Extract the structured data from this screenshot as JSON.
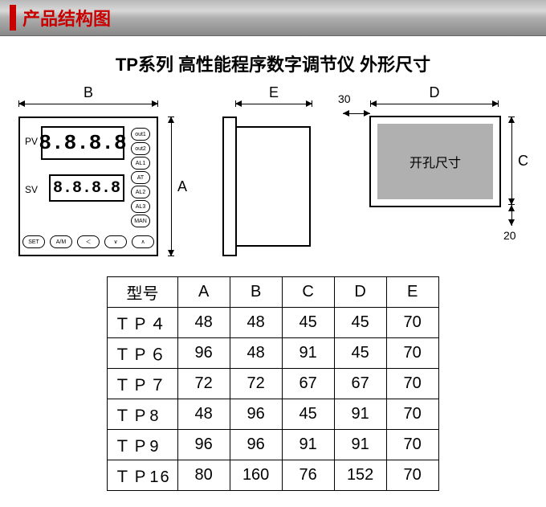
{
  "header": {
    "title": "产品结构图"
  },
  "subtitle": "TP系列 高性能程序数字调节仪 外形尺寸",
  "panel": {
    "pv_label": "PV",
    "sv_label": "SV",
    "seg_placeholder": "8.8.8.8",
    "side_buttons": [
      "out1",
      "out2",
      "AL1",
      "AT",
      "AL2",
      "AL3",
      "MAN"
    ],
    "bottom_buttons": [
      "SET",
      "A/M",
      "＜",
      "∨",
      "∧"
    ]
  },
  "dims": {
    "B": "B",
    "A": "A",
    "E": "E",
    "D": "D",
    "C": "C",
    "thirty": "30",
    "twenty": "20",
    "cutout_text": "开孔尺寸"
  },
  "table": {
    "head_model": "型号",
    "columns": [
      "A",
      "B",
      "C",
      "D",
      "E"
    ],
    "rows": [
      {
        "model": "ＴＰ４",
        "vals": [
          "48",
          "48",
          "45",
          "45",
          "70"
        ]
      },
      {
        "model": "ＴＰ６",
        "vals": [
          "96",
          "48",
          "91",
          "45",
          "70"
        ]
      },
      {
        "model": "ＴＰ７",
        "vals": [
          "72",
          "72",
          "67",
          "67",
          "70"
        ]
      },
      {
        "model": "ＴＰ8",
        "vals": [
          "48",
          "96",
          "45",
          "91",
          "70"
        ]
      },
      {
        "model": "ＴＰ9",
        "vals": [
          "96",
          "96",
          "91",
          "91",
          "70"
        ]
      },
      {
        "model": "ＴＰ16",
        "vals": [
          "80",
          "160",
          "76",
          "152",
          "70"
        ]
      }
    ]
  },
  "colors": {
    "accent_red": "#c90000",
    "metal_grad_top": "#b8b8b8",
    "metal_grad_bottom": "#888888",
    "cutout_fill": "#b0b0b0",
    "line": "#000000",
    "background": "#ffffff"
  }
}
